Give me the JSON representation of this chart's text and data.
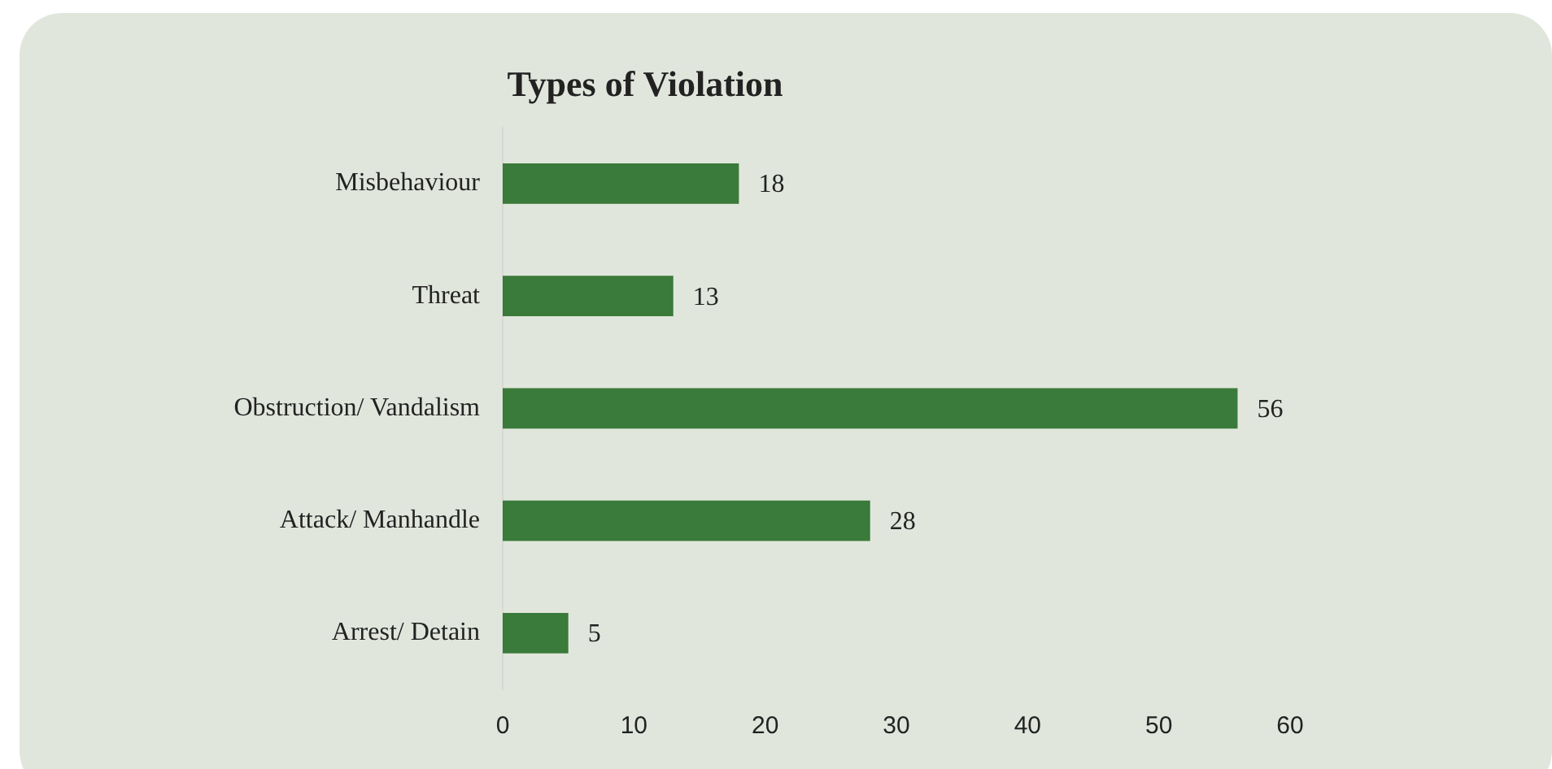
{
  "chart_data": {
    "type": "bar",
    "orientation": "horizontal",
    "title": "Types of Violation",
    "categories": [
      "Misbehaviour",
      "Threat",
      "Obstruction/ Vandalism",
      "Attack/ Manhandle",
      "Arrest/ Detain"
    ],
    "values": [
      18,
      13,
      56,
      28,
      5
    ],
    "color": "#3a7a3a",
    "xlim": [
      0,
      60
    ],
    "xticks": [
      0,
      10,
      20,
      30,
      40,
      50,
      60
    ],
    "grid": false,
    "legend": false,
    "data_labels": true
  }
}
